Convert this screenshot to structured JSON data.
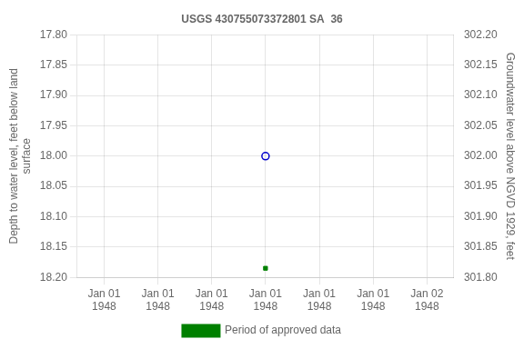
{
  "chart_data": {
    "type": "scatter",
    "title": "USGS 430755073372801 SA  36",
    "y_label": "Depth to water level, feet below land\nsurface",
    "y2_label": "Groundwater level above NGVD 1929, feet",
    "categories": [
      "Jan 01\n1948",
      "Jan 01\n1948",
      "Jan 01\n1948",
      "Jan 01\n1948",
      "Jan 01\n1948",
      "Jan 01\n1948",
      "Jan 02\n1948"
    ],
    "series": [
      {
        "color": "#0000cc",
        "marker": "open_circle",
        "values": [
          null,
          null,
          null,
          18.0,
          null,
          null,
          null
        ]
      },
      {
        "name": "Period of approved data",
        "color": "#008000",
        "marker": "square",
        "values": [
          null,
          null,
          null,
          18.185,
          null,
          null,
          null
        ]
      }
    ],
    "ylim": [
      18.2,
      17.8
    ],
    "yticks": [
      {
        "value": 17.8,
        "label": "17.80"
      },
      {
        "value": 17.85,
        "label": "17.85"
      },
      {
        "value": 17.9,
        "label": "17.90"
      },
      {
        "value": 17.95,
        "label": "17.95"
      },
      {
        "value": 18.0,
        "label": "18.00"
      },
      {
        "value": 18.05,
        "label": "18.05"
      },
      {
        "value": 18.1,
        "label": "18.10"
      },
      {
        "value": 18.15,
        "label": "18.15"
      },
      {
        "value": 18.2,
        "label": "18.20"
      }
    ],
    "y2lim": [
      301.8,
      302.2
    ],
    "y2ticks": [
      {
        "value": 302.2,
        "label": "302.20"
      },
      {
        "value": 302.15,
        "label": "302.15"
      },
      {
        "value": 302.1,
        "label": "302.10"
      },
      {
        "value": 302.05,
        "label": "302.05"
      },
      {
        "value": 302.0,
        "label": "302.00"
      },
      {
        "value": 301.95,
        "label": "301.95"
      },
      {
        "value": 301.9,
        "label": "301.90"
      },
      {
        "value": 301.85,
        "label": "301.85"
      },
      {
        "value": 301.8,
        "label": "301.80"
      }
    ],
    "grid": true,
    "legend": "bottom"
  }
}
